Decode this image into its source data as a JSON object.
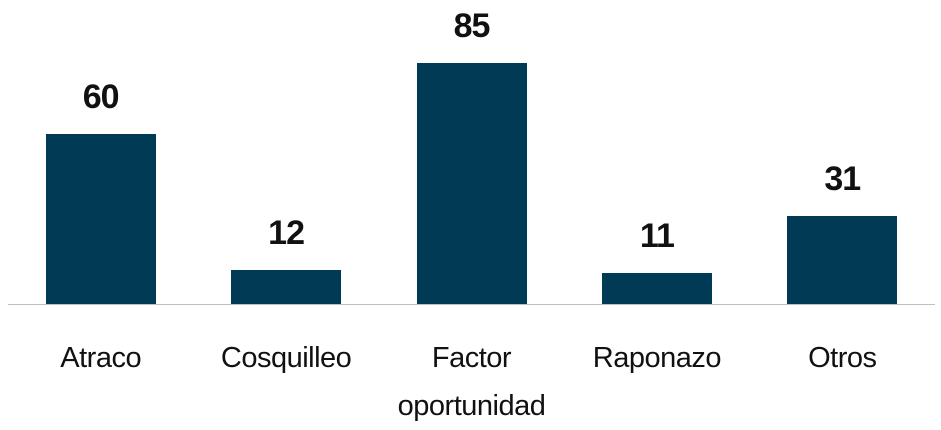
{
  "chart_data": {
    "type": "bar",
    "categories": [
      "Atraco",
      "Cosquilleo",
      "Factor oportunidad",
      "Raponazo",
      "Otros"
    ],
    "values": [
      60,
      12,
      85,
      11,
      31
    ],
    "color": "#003a55"
  }
}
